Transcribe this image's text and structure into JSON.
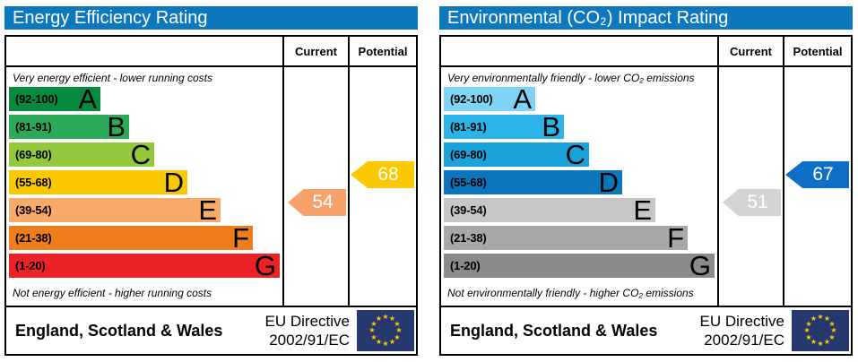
{
  "labels": {
    "current": "Current",
    "potential": "Potential"
  },
  "colors": {
    "header_bar": "#0e78bf",
    "table_border": "#000000"
  },
  "panels": [
    {
      "title": "Energy Efficiency Rating",
      "top_note": "Very energy efficient - lower running costs",
      "bottom_note": "Not energy efficient - higher running costs",
      "bands": [
        {
          "range": "(92-100)",
          "letter": "A",
          "color": "#058a40"
        },
        {
          "range": "(81-91)",
          "letter": "B",
          "color": "#2baa5a"
        },
        {
          "range": "(69-80)",
          "letter": "C",
          "color": "#94c83d"
        },
        {
          "range": "(55-68)",
          "letter": "D",
          "color": "#fcc900"
        },
        {
          "range": "(39-54)",
          "letter": "E",
          "color": "#f8aa6a"
        },
        {
          "range": "(21-38)",
          "letter": "F",
          "color": "#ee7d1d"
        },
        {
          "range": "(1-20)",
          "letter": "G",
          "color": "#ec2227"
        }
      ],
      "current": {
        "value": "54",
        "band": "E",
        "color": "#f8a26b"
      },
      "potential": {
        "value": "68",
        "band": "D",
        "color": "#fcc900"
      }
    },
    {
      "title": "Environmental (CO₂) Impact Rating",
      "top_note": "Very environmentally friendly - lower CO₂ emissions",
      "bottom_note": "Not environmentally friendly - higher CO₂ emissions",
      "bands": [
        {
          "range": "(92-100)",
          "letter": "A",
          "color": "#7fd4f6"
        },
        {
          "range": "(81-91)",
          "letter": "B",
          "color": "#2cb3e8"
        },
        {
          "range": "(69-80)",
          "letter": "C",
          "color": "#1aa3da"
        },
        {
          "range": "(55-68)",
          "letter": "D",
          "color": "#0b76bc"
        },
        {
          "range": "(39-54)",
          "letter": "E",
          "color": "#c6c6c6"
        },
        {
          "range": "(21-38)",
          "letter": "F",
          "color": "#a8a8a8"
        },
        {
          "range": "(1-20)",
          "letter": "G",
          "color": "#8a8a8a"
        }
      ],
      "current": {
        "value": "51",
        "band": "E",
        "color": "#d4d4d4"
      },
      "potential": {
        "value": "67",
        "band": "D",
        "color": "#0f6fc6"
      }
    }
  ],
  "footer": {
    "region": "England, Scotland & Wales",
    "directive_line1": "EU Directive",
    "directive_line2": "2002/91/EC",
    "flag": {
      "background": "#27386e",
      "star_color": "#ffcc00",
      "star_count": 12
    }
  },
  "chart_data": [
    {
      "type": "bar",
      "title": "Energy Efficiency Rating",
      "categories": [
        "A (92-100)",
        "B (81-91)",
        "C (69-80)",
        "D (55-68)",
        "E (39-54)",
        "F (21-38)",
        "G (1-20)"
      ],
      "values": [
        102,
        134,
        162,
        199,
        236,
        272,
        302
      ],
      "markers": {
        "current": 54,
        "potential": 68
      },
      "xlabel": "",
      "ylabel": "",
      "orientation": "horizontal",
      "grid": false
    },
    {
      "type": "bar",
      "title": "Environmental (CO₂) Impact Rating",
      "categories": [
        "A (92-100)",
        "B (81-91)",
        "C (69-80)",
        "D (55-68)",
        "E (39-54)",
        "F (21-38)",
        "G (1-20)"
      ],
      "values": [
        102,
        134,
        162,
        199,
        236,
        272,
        302
      ],
      "markers": {
        "current": 51,
        "potential": 67
      },
      "xlabel": "",
      "ylabel": "",
      "orientation": "horizontal",
      "grid": false
    }
  ]
}
